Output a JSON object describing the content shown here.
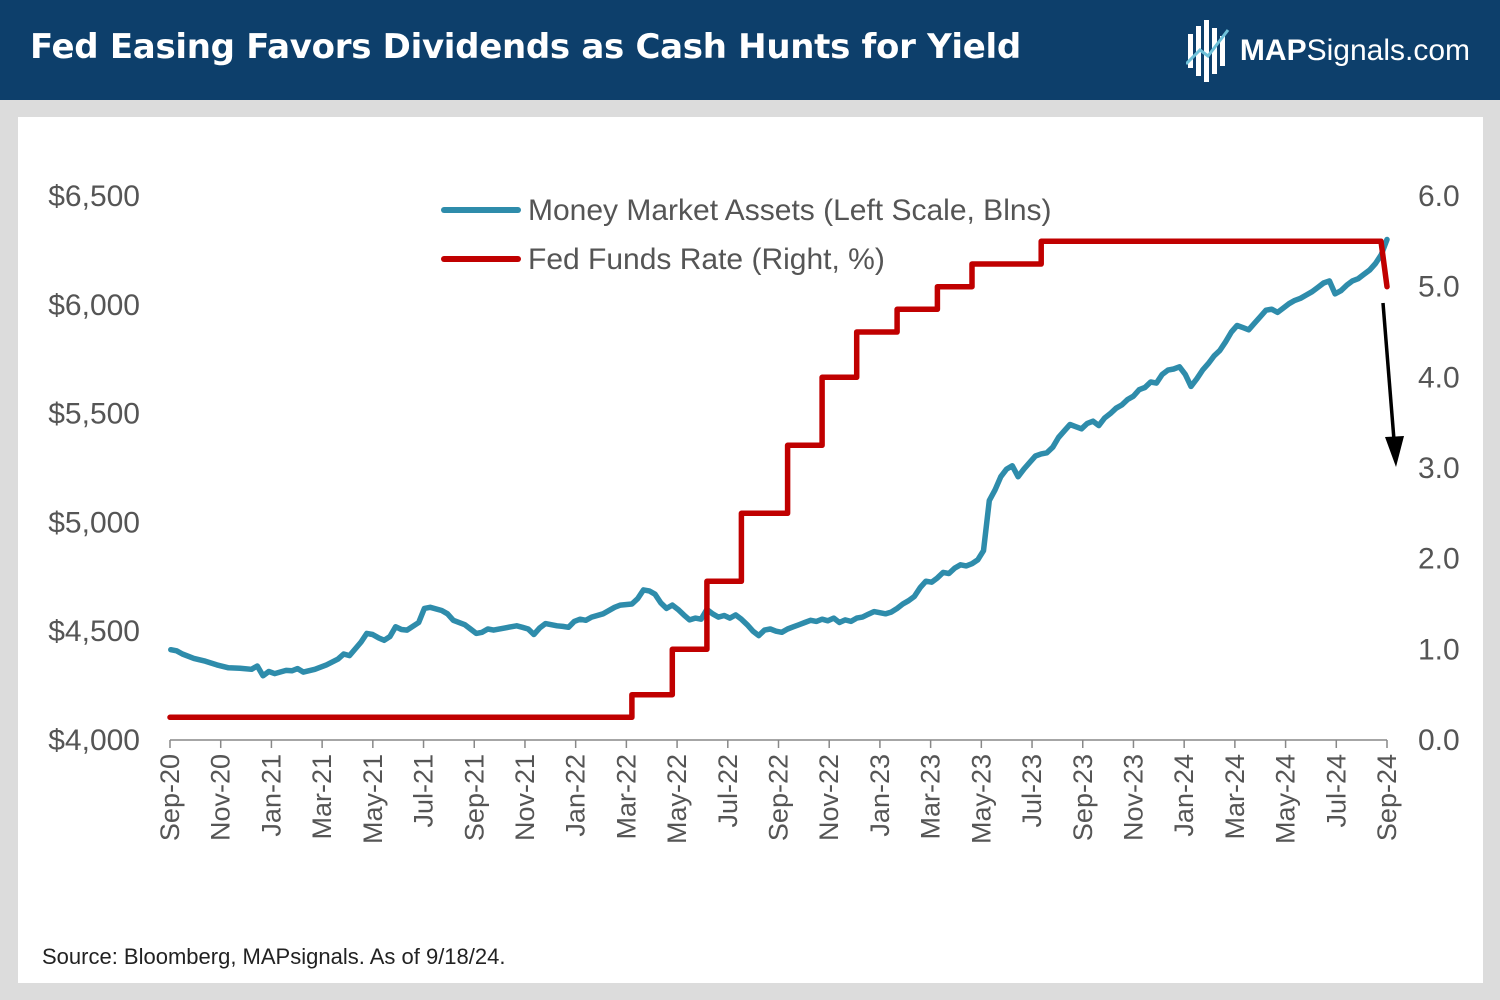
{
  "header": {
    "title": "Fed Easing Favors Dividends as Cash Hunts for Yield",
    "brand_bold": "MAP",
    "brand_rest": "Signals.com"
  },
  "source": "Source: Bloomberg, MAPsignals. As of 9/18/24.",
  "colors": {
    "header_bg": "#0d3f6b",
    "money_market": "#2e8cab",
    "fed_funds": "#c00000",
    "arrow": "#000000"
  },
  "chart_data": {
    "type": "line",
    "x_tick_labels": [
      "Sep-20",
      "Nov-20",
      "Jan-21",
      "Mar-21",
      "May-21",
      "Jul-21",
      "Sep-21",
      "Nov-21",
      "Jan-22",
      "Mar-22",
      "May-22",
      "Jul-22",
      "Sep-22",
      "Nov-22",
      "Jan-23",
      "Mar-23",
      "May-23",
      "Jul-23",
      "Sep-23",
      "Nov-23",
      "Jan-24",
      "Mar-24",
      "May-24",
      "Jul-24",
      "Sep-24"
    ],
    "x_range": [
      "2020-09-01",
      "2024-09-18"
    ],
    "left_axis": {
      "min": 4000,
      "max": 6500,
      "ticks": [
        4000,
        4500,
        5000,
        5500,
        6000,
        6500
      ],
      "tick_labels": [
        "$4,000",
        "$4,500",
        "$5,000",
        "$5,500",
        "$6,000",
        "$6,500"
      ]
    },
    "right_axis": {
      "min": 0,
      "max": 6,
      "ticks": [
        0,
        1,
        2,
        3,
        4,
        5,
        6
      ],
      "tick_labels": [
        "0.0",
        "1.0",
        "2.0",
        "3.0",
        "4.0",
        "5.0",
        "6.0"
      ]
    },
    "grid": false,
    "legend_position": "top-center",
    "series": [
      {
        "name": "Money Market Assets (Left Scale, Blns)",
        "axis": "left",
        "color": "#2e8cab",
        "points": [
          [
            "2020-09-02",
            4415
          ],
          [
            "2020-09-09",
            4410
          ],
          [
            "2020-09-16",
            4395
          ],
          [
            "2020-09-30",
            4375
          ],
          [
            "2020-10-14",
            4362
          ],
          [
            "2020-10-28",
            4345
          ],
          [
            "2020-11-11",
            4332
          ],
          [
            "2020-11-25",
            4330
          ],
          [
            "2020-12-09",
            4325
          ],
          [
            "2020-12-16",
            4340
          ],
          [
            "2020-12-23",
            4295
          ],
          [
            "2020-12-30",
            4315
          ],
          [
            "2021-01-06",
            4305
          ],
          [
            "2021-01-20",
            4320
          ],
          [
            "2021-01-27",
            4318
          ],
          [
            "2021-02-03",
            4328
          ],
          [
            "2021-02-10",
            4312
          ],
          [
            "2021-02-24",
            4325
          ],
          [
            "2021-03-10",
            4345
          ],
          [
            "2021-03-24",
            4372
          ],
          [
            "2021-03-31",
            4395
          ],
          [
            "2021-04-07",
            4388
          ],
          [
            "2021-04-21",
            4450
          ],
          [
            "2021-04-28",
            4490
          ],
          [
            "2021-05-05",
            4485
          ],
          [
            "2021-05-12",
            4470
          ],
          [
            "2021-05-19",
            4458
          ],
          [
            "2021-05-26",
            4475
          ],
          [
            "2021-06-02",
            4520
          ],
          [
            "2021-06-09",
            4508
          ],
          [
            "2021-06-16",
            4505
          ],
          [
            "2021-06-30",
            4540
          ],
          [
            "2021-07-07",
            4605
          ],
          [
            "2021-07-14",
            4610
          ],
          [
            "2021-07-28",
            4595
          ],
          [
            "2021-08-04",
            4580
          ],
          [
            "2021-08-11",
            4550
          ],
          [
            "2021-08-25",
            4530
          ],
          [
            "2021-09-01",
            4510
          ],
          [
            "2021-09-08",
            4490
          ],
          [
            "2021-09-15",
            4495
          ],
          [
            "2021-09-22",
            4510
          ],
          [
            "2021-09-29",
            4505
          ],
          [
            "2021-10-13",
            4515
          ],
          [
            "2021-10-20",
            4520
          ],
          [
            "2021-10-27",
            4525
          ],
          [
            "2021-11-03",
            4518
          ],
          [
            "2021-11-10",
            4510
          ],
          [
            "2021-11-17",
            4485
          ],
          [
            "2021-11-24",
            4515
          ],
          [
            "2021-12-01",
            4535
          ],
          [
            "2021-12-15",
            4525
          ],
          [
            "2021-12-22",
            4522
          ],
          [
            "2021-12-29",
            4518
          ],
          [
            "2022-01-05",
            4545
          ],
          [
            "2022-01-12",
            4555
          ],
          [
            "2022-01-19",
            4550
          ],
          [
            "2022-01-26",
            4565
          ],
          [
            "2022-02-09",
            4580
          ],
          [
            "2022-02-23",
            4610
          ],
          [
            "2022-03-02",
            4620
          ],
          [
            "2022-03-16",
            4625
          ],
          [
            "2022-03-23",
            4650
          ],
          [
            "2022-03-30",
            4690
          ],
          [
            "2022-04-06",
            4685
          ],
          [
            "2022-04-13",
            4670
          ],
          [
            "2022-04-20",
            4630
          ],
          [
            "2022-04-27",
            4605
          ],
          [
            "2022-05-04",
            4620
          ],
          [
            "2022-05-11",
            4600
          ],
          [
            "2022-05-18",
            4575
          ],
          [
            "2022-05-25",
            4552
          ],
          [
            "2022-06-01",
            4560
          ],
          [
            "2022-06-08",
            4555
          ],
          [
            "2022-06-15",
            4600
          ],
          [
            "2022-06-22",
            4580
          ],
          [
            "2022-06-29",
            4565
          ],
          [
            "2022-07-06",
            4572
          ],
          [
            "2022-07-13",
            4560
          ],
          [
            "2022-07-20",
            4575
          ],
          [
            "2022-07-27",
            4555
          ],
          [
            "2022-08-03",
            4530
          ],
          [
            "2022-08-10",
            4500
          ],
          [
            "2022-08-17",
            4480
          ],
          [
            "2022-08-24",
            4505
          ],
          [
            "2022-08-31",
            4510
          ],
          [
            "2022-09-07",
            4500
          ],
          [
            "2022-09-14",
            4495
          ],
          [
            "2022-09-21",
            4510
          ],
          [
            "2022-09-28",
            4520
          ],
          [
            "2022-10-05",
            4530
          ],
          [
            "2022-10-12",
            4540
          ],
          [
            "2022-10-19",
            4550
          ],
          [
            "2022-10-26",
            4545
          ],
          [
            "2022-11-02",
            4555
          ],
          [
            "2022-11-09",
            4548
          ],
          [
            "2022-11-16",
            4560
          ],
          [
            "2022-11-23",
            4540
          ],
          [
            "2022-11-30",
            4552
          ],
          [
            "2022-12-07",
            4545
          ],
          [
            "2022-12-14",
            4560
          ],
          [
            "2022-12-21",
            4565
          ],
          [
            "2022-12-28",
            4578
          ],
          [
            "2023-01-04",
            4590
          ],
          [
            "2023-01-11",
            4585
          ],
          [
            "2023-01-18",
            4580
          ],
          [
            "2023-01-25",
            4588
          ],
          [
            "2023-02-01",
            4605
          ],
          [
            "2023-02-08",
            4625
          ],
          [
            "2023-02-15",
            4640
          ],
          [
            "2023-02-22",
            4660
          ],
          [
            "2023-03-01",
            4700
          ],
          [
            "2023-03-08",
            4730
          ],
          [
            "2023-03-15",
            4725
          ],
          [
            "2023-03-22",
            4745
          ],
          [
            "2023-03-29",
            4770
          ],
          [
            "2023-04-05",
            4765
          ],
          [
            "2023-04-12",
            4790
          ],
          [
            "2023-04-19",
            4805
          ],
          [
            "2023-04-26",
            4800
          ],
          [
            "2023-05-03",
            4810
          ],
          [
            "2023-05-10",
            4828
          ],
          [
            "2023-05-17",
            4870
          ],
          [
            "2023-05-24",
            5100
          ],
          [
            "2023-05-31",
            5150
          ],
          [
            "2023-06-07",
            5210
          ],
          [
            "2023-06-14",
            5245
          ],
          [
            "2023-06-21",
            5260
          ],
          [
            "2023-06-28",
            5210
          ],
          [
            "2023-07-05",
            5245
          ],
          [
            "2023-07-12",
            5275
          ],
          [
            "2023-07-19",
            5305
          ],
          [
            "2023-07-26",
            5315
          ],
          [
            "2023-08-02",
            5320
          ],
          [
            "2023-08-09",
            5345
          ],
          [
            "2023-08-16",
            5390
          ],
          [
            "2023-08-23",
            5420
          ],
          [
            "2023-08-30",
            5450
          ],
          [
            "2023-09-06",
            5440
          ],
          [
            "2023-09-13",
            5430
          ],
          [
            "2023-09-20",
            5455
          ],
          [
            "2023-09-27",
            5465
          ],
          [
            "2023-10-04",
            5445
          ],
          [
            "2023-10-11",
            5480
          ],
          [
            "2023-10-18",
            5500
          ],
          [
            "2023-10-25",
            5525
          ],
          [
            "2023-11-01",
            5540
          ],
          [
            "2023-11-08",
            5565
          ],
          [
            "2023-11-15",
            5580
          ],
          [
            "2023-11-22",
            5610
          ],
          [
            "2023-11-29",
            5620
          ],
          [
            "2023-12-06",
            5645
          ],
          [
            "2023-12-13",
            5640
          ],
          [
            "2023-12-20",
            5680
          ],
          [
            "2023-12-27",
            5700
          ],
          [
            "2024-01-03",
            5705
          ],
          [
            "2024-01-10",
            5715
          ],
          [
            "2024-01-17",
            5680
          ],
          [
            "2024-01-24",
            5625
          ],
          [
            "2024-01-31",
            5660
          ],
          [
            "2024-02-07",
            5700
          ],
          [
            "2024-02-14",
            5730
          ],
          [
            "2024-02-21",
            5765
          ],
          [
            "2024-02-28",
            5790
          ],
          [
            "2024-03-06",
            5830
          ],
          [
            "2024-03-13",
            5875
          ],
          [
            "2024-03-20",
            5905
          ],
          [
            "2024-03-27",
            5895
          ],
          [
            "2024-04-03",
            5885
          ],
          [
            "2024-04-10",
            5915
          ],
          [
            "2024-04-17",
            5945
          ],
          [
            "2024-04-24",
            5975
          ],
          [
            "2024-05-01",
            5980
          ],
          [
            "2024-05-08",
            5965
          ],
          [
            "2024-05-15",
            5985
          ],
          [
            "2024-05-22",
            6005
          ],
          [
            "2024-05-29",
            6020
          ],
          [
            "2024-06-05",
            6030
          ],
          [
            "2024-06-12",
            6045
          ],
          [
            "2024-06-19",
            6060
          ],
          [
            "2024-06-26",
            6080
          ],
          [
            "2024-07-03",
            6100
          ],
          [
            "2024-07-10",
            6110
          ],
          [
            "2024-07-17",
            6050
          ],
          [
            "2024-07-24",
            6065
          ],
          [
            "2024-07-31",
            6090
          ],
          [
            "2024-08-07",
            6110
          ],
          [
            "2024-08-14",
            6120
          ],
          [
            "2024-08-21",
            6140
          ],
          [
            "2024-08-28",
            6160
          ],
          [
            "2024-09-04",
            6190
          ],
          [
            "2024-09-11",
            6230
          ],
          [
            "2024-09-18",
            6300
          ]
        ]
      },
      {
        "name": "Fed Funds Rate (Right, %)",
        "axis": "right",
        "color": "#c00000",
        "step": true,
        "points": [
          [
            "2020-09-01",
            0.25
          ],
          [
            "2022-03-16",
            0.5
          ],
          [
            "2022-05-04",
            1.0
          ],
          [
            "2022-06-15",
            1.75
          ],
          [
            "2022-07-27",
            2.5
          ],
          [
            "2022-09-21",
            3.25
          ],
          [
            "2022-11-02",
            4.0
          ],
          [
            "2022-12-14",
            4.5
          ],
          [
            "2023-02-01",
            4.75
          ],
          [
            "2023-03-22",
            5.0
          ],
          [
            "2023-05-03",
            5.25
          ],
          [
            "2023-07-26",
            5.5
          ],
          [
            "2024-09-18",
            5.0
          ]
        ]
      }
    ],
    "annotation": "downward-arrow"
  }
}
